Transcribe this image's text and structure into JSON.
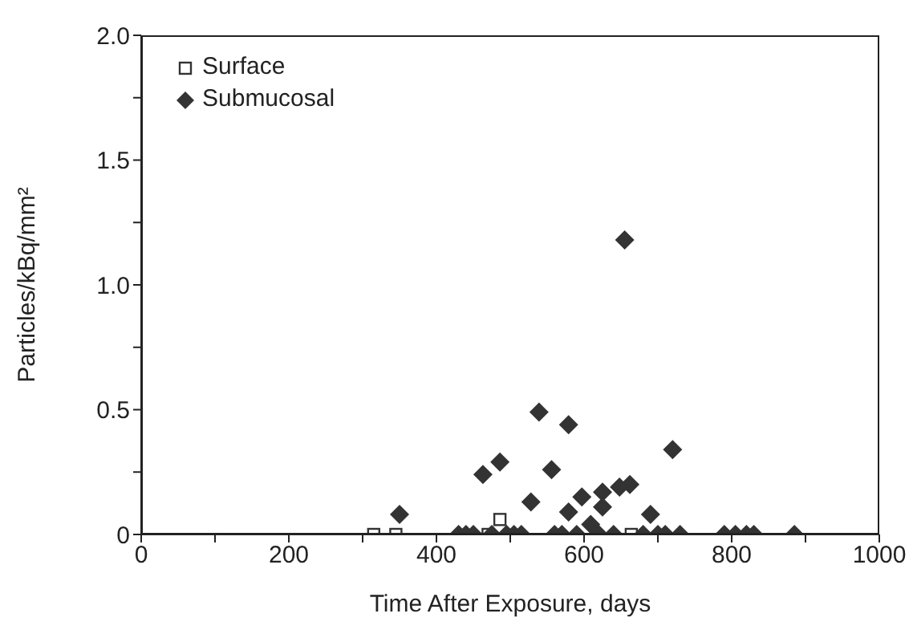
{
  "chart_data": {
    "type": "scatter",
    "xlabel": "Time After Exposure, days",
    "ylabel": "Particles/kBq/mm²",
    "xlim": [
      0,
      1000
    ],
    "ylim": [
      0,
      2
    ],
    "xticks": [
      0,
      {
        "value": 100,
        "label": null
      },
      200,
      {
        "value": 300,
        "label": null
      },
      400,
      {
        "value": 500,
        "label": null
      },
      600,
      {
        "value": 700,
        "label": null
      },
      800,
      {
        "value": 900,
        "label": null
      },
      1000
    ],
    "yticks": [
      0,
      {
        "value": 0.25,
        "label": null
      },
      0.5,
      {
        "value": 0.75,
        "label": null
      },
      {
        "value": 1,
        "label": "1.0"
      },
      {
        "value": 1.25,
        "label": null
      },
      1.5,
      {
        "value": 1.75,
        "label": null
      },
      {
        "value": 2,
        "label": "2.0"
      }
    ],
    "legend": "top left",
    "grid": false,
    "series": [
      {
        "name": "Surface",
        "color": "#333333",
        "marker": "square",
        "x": [
          315,
          345,
          470,
          486,
          664
        ],
        "values": [
          0,
          0,
          0,
          0.06,
          0
        ]
      },
      {
        "name": "Submucosal",
        "color": "#333333",
        "marker": "diamond",
        "x": [
          350,
          463,
          486,
          539,
          556,
          579,
          528,
          597,
          625,
          625,
          662,
          648,
          579,
          609,
          690,
          720,
          655,
          430,
          440,
          450,
          475,
          495,
          505,
          515,
          560,
          570,
          590,
          620,
          640,
          680,
          700,
          710,
          730,
          790,
          805,
          820,
          830,
          885
        ],
        "values": [
          0.08,
          0.24,
          0.29,
          0.49,
          0.26,
          0.44,
          0.13,
          0.15,
          0.17,
          0.11,
          0.2,
          0.19,
          0.09,
          0.04,
          0.08,
          0.34,
          1.18,
          0,
          0,
          0,
          0,
          0,
          0,
          0,
          0,
          0,
          0,
          0,
          0,
          0,
          0,
          0,
          0,
          0,
          0,
          0,
          0,
          0
        ]
      }
    ]
  }
}
